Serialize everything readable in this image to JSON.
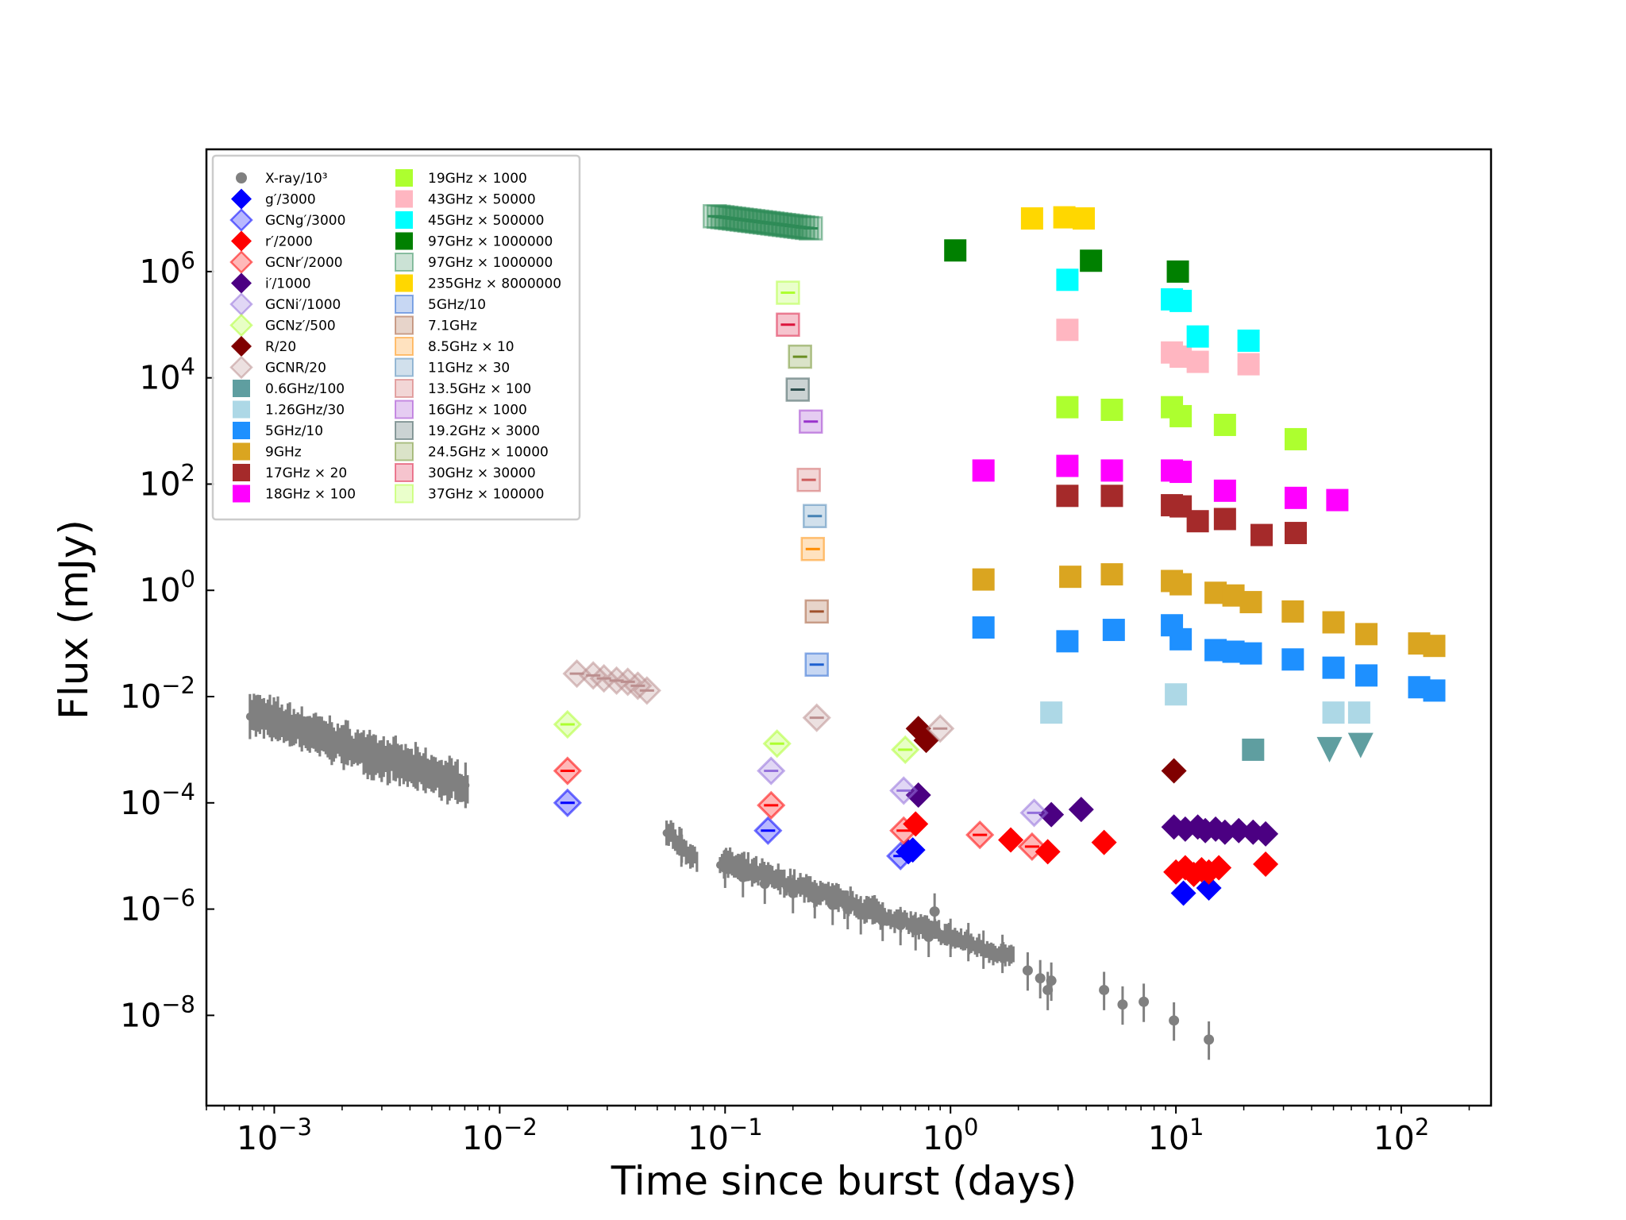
{
  "chart_data": {
    "type": "scatter",
    "xlabel": "Time since burst (days)",
    "ylabel": "Flux (mJy)",
    "xscale": "log",
    "yscale": "log",
    "xlim": [
      0.0005,
      250
    ],
    "ylim": [
      2e-10,
      200000000.0
    ],
    "x_ticks": [
      {
        "value": 0.001,
        "base": "10",
        "exp": "−3"
      },
      {
        "value": 0.01,
        "base": "10",
        "exp": "−2"
      },
      {
        "value": 0.1,
        "base": "10",
        "exp": "−1"
      },
      {
        "value": 1,
        "base": "10",
        "exp": "0"
      },
      {
        "value": 10,
        "base": "10",
        "exp": "1"
      },
      {
        "value": 100,
        "base": "10",
        "exp": "2"
      }
    ],
    "y_ticks": [
      {
        "value": 1e-08,
        "base": "10",
        "exp": "−8"
      },
      {
        "value": 1e-06,
        "base": "10",
        "exp": "−6"
      },
      {
        "value": 0.0001,
        "base": "10",
        "exp": "−4"
      },
      {
        "value": 0.01,
        "base": "10",
        "exp": "−2"
      },
      {
        "value": 1,
        "base": "10",
        "exp": "0"
      },
      {
        "value": 100,
        "base": "10",
        "exp": "2"
      },
      {
        "value": 10000,
        "base": "10",
        "exp": "4"
      },
      {
        "value": 1000000,
        "base": "10",
        "exp": "6"
      }
    ],
    "legend_position": "upper-left",
    "series": [
      {
        "name": "X-ray/10³",
        "color": "#808080",
        "marker": "circle",
        "points": [
          [
            0.064,
            1.5e-05
          ],
          [
            0.1,
            6e-06
          ],
          [
            0.12,
            4e-06
          ],
          [
            0.15,
            3e-06
          ],
          [
            0.2,
            2e-06
          ],
          [
            0.25,
            1.6e-06
          ],
          [
            0.3,
            1.2e-06
          ],
          [
            0.35,
            1e-06
          ],
          [
            0.4,
            8e-07
          ],
          [
            0.5,
            6e-07
          ],
          [
            0.6,
            5e-07
          ],
          [
            0.7,
            4e-07
          ],
          [
            0.8,
            3e-07
          ],
          [
            0.85,
            9e-07
          ],
          [
            1.0,
            3e-07
          ],
          [
            1.2,
            2.5e-07
          ],
          [
            1.4,
            1.8e-07
          ],
          [
            1.7,
            1.5e-07
          ],
          [
            2.2,
            7e-08
          ],
          [
            2.5,
            5e-08
          ],
          [
            2.7,
            3e-08
          ],
          [
            2.8,
            4.5e-08
          ],
          [
            4.8,
            3e-08
          ],
          [
            5.8,
            1.6e-08
          ],
          [
            7.2,
            1.8e-08
          ],
          [
            9.8,
            8e-09
          ],
          [
            14,
            3.5e-09
          ]
        ],
        "dense_band": [
          {
            "x": [
              0.00078,
              0.0072
            ],
            "y_start": 0.005,
            "y_end": 0.0002,
            "spread_dex": 0.4
          },
          {
            "x": [
              0.055,
              0.075
            ],
            "y_start": 3e-05,
            "y_end": 8e-06,
            "spread_dex": 0.25
          },
          {
            "x": [
              0.095,
              0.5
            ],
            "y_start": 8e-06,
            "y_end": 8e-07,
            "spread_dex": 0.25
          },
          {
            "x": [
              0.5,
              1.9
            ],
            "y_start": 8e-07,
            "y_end": 1.2e-07,
            "spread_dex": 0.2
          }
        ]
      },
      {
        "name": "g′/3000",
        "color": "#0000ff",
        "marker": "diamond",
        "points": [
          [
            0.65,
            1.2e-05
          ],
          [
            0.68,
            1.3e-05
          ],
          [
            10.8,
            2e-06
          ],
          [
            14,
            2.5e-06
          ]
        ]
      },
      {
        "name": "GCNg′/3000",
        "color": "#0000ff",
        "marker": "diamond",
        "open": true,
        "points": [
          [
            0.02,
            0.0001
          ],
          [
            0.155,
            3e-05
          ],
          [
            0.6,
            1e-05
          ]
        ]
      },
      {
        "name": "r′/2000",
        "color": "#ff0000",
        "marker": "diamond",
        "points": [
          [
            0.7,
            4e-05
          ],
          [
            1.85,
            2e-05
          ],
          [
            2.7,
            1.2e-05
          ],
          [
            4.8,
            1.8e-05
          ],
          [
            10,
            5e-06
          ],
          [
            11,
            6e-06
          ],
          [
            12,
            4.5e-06
          ],
          [
            13,
            5.5e-06
          ],
          [
            14,
            5e-06
          ],
          [
            15.5,
            6e-06
          ],
          [
            25,
            7e-06
          ]
        ]
      },
      {
        "name": "GCNr′/2000",
        "color": "#ff0000",
        "marker": "diamond",
        "open": true,
        "points": [
          [
            0.02,
            0.0004
          ],
          [
            0.16,
            9e-05
          ],
          [
            0.62,
            3e-05
          ],
          [
            1.35,
            2.5e-05
          ],
          [
            2.3,
            1.5e-05
          ]
        ]
      },
      {
        "name": "i′/1000",
        "color": "#4b0082",
        "marker": "diamond",
        "points": [
          [
            0.72,
            0.00014
          ],
          [
            2.8,
            6e-05
          ],
          [
            3.8,
            7.5e-05
          ],
          [
            9.8,
            3.5e-05
          ],
          [
            11,
            3.2e-05
          ],
          [
            12.5,
            3.5e-05
          ],
          [
            13.5,
            3e-05
          ],
          [
            15,
            3.2e-05
          ],
          [
            16.5,
            2.8e-05
          ],
          [
            19,
            3e-05
          ],
          [
            22,
            2.8e-05
          ],
          [
            25,
            2.6e-05
          ]
        ]
      },
      {
        "name": "GCNi′/1000",
        "color": "#9370db",
        "marker": "diamond",
        "open": true,
        "points": [
          [
            0.16,
            0.0004
          ],
          [
            0.62,
            0.00017
          ],
          [
            2.35,
            6.5e-05
          ]
        ]
      },
      {
        "name": "GCNz′/500",
        "color": "#adff2f",
        "marker": "diamond",
        "open": true,
        "points": [
          [
            0.02,
            0.003
          ],
          [
            0.17,
            0.0013
          ],
          [
            0.63,
            0.001
          ]
        ]
      },
      {
        "name": "R/20",
        "color": "#800000",
        "marker": "diamond",
        "points": [
          [
            0.72,
            0.0025
          ],
          [
            0.78,
            0.0015
          ],
          [
            9.8,
            0.0004
          ]
        ]
      },
      {
        "name": "GCNR/20",
        "color": "#bc8f8f",
        "marker": "diamond",
        "open": true,
        "points": [
          [
            0.022,
            0.027
          ],
          [
            0.026,
            0.025
          ],
          [
            0.029,
            0.022
          ],
          [
            0.033,
            0.02
          ],
          [
            0.037,
            0.019
          ],
          [
            0.041,
            0.016
          ],
          [
            0.045,
            0.013
          ],
          [
            0.255,
            0.004
          ],
          [
            0.9,
            0.0025
          ]
        ]
      },
      {
        "name": "0.6GHz/100",
        "color": "#5f9ea0",
        "marker": "square",
        "points": [
          [
            22,
            0.001
          ]
        ],
        "upper_limits": [
          [
            48,
            0.001
          ],
          [
            66,
            0.0012
          ]
        ]
      },
      {
        "name": "1.26GHz/30",
        "color": "#add8e6",
        "marker": "square",
        "points": [
          [
            2.8,
            0.005
          ],
          [
            10,
            0.011
          ],
          [
            50,
            0.005
          ],
          [
            65,
            0.005
          ]
        ]
      },
      {
        "name": "5GHz/10",
        "color": "#1e90ff",
        "marker": "square",
        "points": [
          [
            1.4,
            0.2
          ],
          [
            3.3,
            0.11
          ],
          [
            5.3,
            0.18
          ],
          [
            9.6,
            0.22
          ],
          [
            10.5,
            0.12
          ],
          [
            15,
            0.075
          ],
          [
            18,
            0.07
          ],
          [
            21.5,
            0.065
          ],
          [
            33,
            0.05
          ],
          [
            50,
            0.035
          ],
          [
            70,
            0.025
          ],
          [
            120,
            0.015
          ],
          [
            140,
            0.013
          ]
        ]
      },
      {
        "name": "9GHz",
        "color": "#daa520",
        "marker": "square",
        "points": [
          [
            1.4,
            1.6
          ],
          [
            3.4,
            1.8
          ],
          [
            5.2,
            2
          ],
          [
            9.6,
            1.5
          ],
          [
            10.5,
            1.3
          ],
          [
            15,
            0.9
          ],
          [
            18,
            0.8
          ],
          [
            21.5,
            0.6
          ],
          [
            33,
            0.4
          ],
          [
            50,
            0.25
          ],
          [
            70,
            0.15
          ],
          [
            120,
            0.1
          ],
          [
            140,
            0.09
          ]
        ]
      },
      {
        "name": "17GHz × 20",
        "color": "#a52a2a",
        "marker": "square",
        "points": [
          [
            3.3,
            60
          ],
          [
            5.2,
            60
          ],
          [
            9.6,
            40
          ],
          [
            10.5,
            38
          ],
          [
            12.5,
            20
          ],
          [
            16.5,
            22
          ],
          [
            24,
            11
          ],
          [
            34,
            12
          ]
        ]
      },
      {
        "name": "18GHz × 100",
        "color": "#ff00ff",
        "marker": "square",
        "points": [
          [
            1.4,
            180
          ],
          [
            3.3,
            220
          ],
          [
            5.2,
            180
          ],
          [
            9.6,
            180
          ],
          [
            10.5,
            170
          ],
          [
            16.5,
            75
          ],
          [
            34,
            55
          ],
          [
            52,
            50
          ]
        ]
      },
      {
        "name": "19GHz × 1000",
        "color": "#adff2f",
        "marker": "square",
        "points": [
          [
            3.3,
            2800
          ],
          [
            5.2,
            2500
          ],
          [
            9.6,
            2800
          ],
          [
            10.5,
            1900
          ],
          [
            16.5,
            1300
          ],
          [
            34,
            700
          ]
        ]
      },
      {
        "name": "43GHz × 50000",
        "color": "#ffb6c1",
        "marker": "square",
        "points": [
          [
            3.3,
            80000
          ],
          [
            9.6,
            30000
          ],
          [
            10.5,
            25000
          ],
          [
            12.5,
            20000
          ],
          [
            21,
            18000
          ]
        ]
      },
      {
        "name": "45GHz × 500000",
        "color": "#00ffff",
        "marker": "square",
        "points": [
          [
            3.3,
            700000
          ],
          [
            9.6,
            300000
          ],
          [
            10.5,
            280000
          ],
          [
            12.5,
            60000
          ],
          [
            21,
            50000
          ]
        ]
      },
      {
        "name": "97GHz × 1000000",
        "color": "#008000",
        "marker": "square",
        "points": [
          [
            1.05,
            2500000.0
          ],
          [
            4.2,
            1600000.0
          ],
          [
            10.2,
            1000000.0
          ]
        ]
      },
      {
        "name": "97GHz × 1000000",
        "color": "#2e8b57",
        "marker": "square",
        "open": true,
        "light": true,
        "band": {
          "x": [
            0.09,
            0.24
          ],
          "y_start": 11000000.0,
          "y_end": 6500000.0,
          "count": 26
        }
      },
      {
        "name": "235GHz × 8000000",
        "color": "#ffd700",
        "marker": "square",
        "points": [
          [
            2.3,
            10000000.0
          ],
          [
            3.2,
            10500000.0
          ],
          [
            3.9,
            10000000.0
          ]
        ]
      },
      {
        "name": "5GHz/10",
        "color": "#1e60d0",
        "marker": "square",
        "open": true,
        "light": true,
        "points": [
          [
            0.255,
            0.04
          ]
        ]
      },
      {
        "name": "7.1GHz",
        "color": "#a0522d",
        "marker": "square",
        "open": true,
        "light": true,
        "points": [
          [
            0.255,
            0.4
          ]
        ]
      },
      {
        "name": "8.5GHz × 10",
        "color": "#ff8c00",
        "marker": "square",
        "open": true,
        "light": true,
        "points": [
          [
            0.245,
            6
          ]
        ]
      },
      {
        "name": "11GHz × 30",
        "color": "#4682b4",
        "marker": "square",
        "open": true,
        "light": true,
        "points": [
          [
            0.25,
            25
          ]
        ]
      },
      {
        "name": "13.5GHz × 100",
        "color": "#cd5c5c",
        "marker": "square",
        "open": true,
        "light": true,
        "points": [
          [
            0.235,
            120
          ]
        ]
      },
      {
        "name": "16GHz × 1000",
        "color": "#9932cc",
        "marker": "square",
        "open": true,
        "light": true,
        "points": [
          [
            0.24,
            1500
          ]
        ]
      },
      {
        "name": "19.2GHz × 3000",
        "color": "#2f4f4f",
        "marker": "square",
        "open": true,
        "light": true,
        "points": [
          [
            0.21,
            6000
          ]
        ]
      },
      {
        "name": "24.5GHz × 10000",
        "color": "#6b8e23",
        "marker": "square",
        "open": true,
        "light": true,
        "points": [
          [
            0.215,
            25000
          ]
        ]
      },
      {
        "name": "30GHz × 30000",
        "color": "#dc143c",
        "marker": "square",
        "open": true,
        "light": true,
        "points": [
          [
            0.19,
            100000
          ]
        ]
      },
      {
        "name": "37GHz × 100000",
        "color": "#adff2f",
        "marker": "square",
        "open": true,
        "light": true,
        "points": [
          [
            0.19,
            400000
          ]
        ]
      }
    ]
  }
}
